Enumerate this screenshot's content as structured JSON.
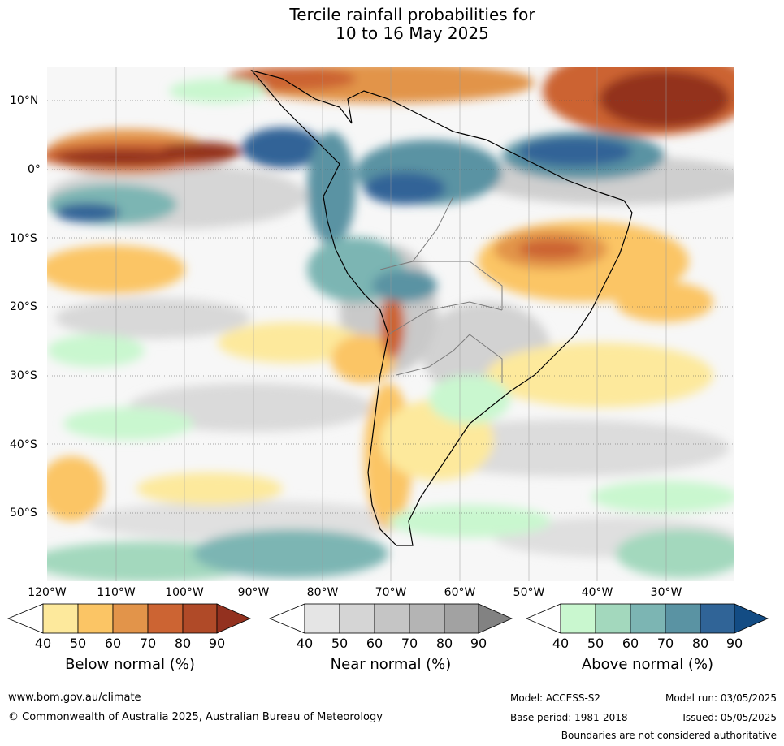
{
  "title": {
    "line1": "Tercile rainfall probabilities for",
    "line2": "10 to 16 May 2025"
  },
  "latitude_labels": [
    "10°N",
    "0°",
    "10°S",
    "20°S",
    "30°S",
    "40°S",
    "50°S"
  ],
  "longitude_labels": [
    "120°W",
    "110°W",
    "100°W",
    "90°W",
    "80°W",
    "70°W",
    "60°W",
    "50°W",
    "40°W",
    "30°W"
  ],
  "colorbars": {
    "below": {
      "title": "Below normal (%)",
      "ticks": [
        "40",
        "50",
        "60",
        "70",
        "80",
        "90"
      ],
      "colors": [
        "#ffffff",
        "#fde99c",
        "#fbc565",
        "#e2944a",
        "#cc6433",
        "#b04a28",
        "#93311f"
      ]
    },
    "near": {
      "title": "Near normal (%)",
      "ticks": [
        "40",
        "50",
        "60",
        "70",
        "80",
        "90"
      ],
      "colors": [
        "#ffffff",
        "#e5e5e5",
        "#d5d5d5",
        "#c5c5c5",
        "#b4b4b4",
        "#a2a2a2",
        "#828282"
      ]
    },
    "above": {
      "title": "Above normal (%)",
      "ticks": [
        "40",
        "50",
        "60",
        "70",
        "80",
        "90"
      ],
      "colors": [
        "#ffffff",
        "#c9f7cf",
        "#a3d8bd",
        "#7cb5b3",
        "#5a93a3",
        "#306497",
        "#134c84"
      ]
    }
  },
  "footer": {
    "website": "www.bom.gov.au/climate",
    "copyright": "© Commonwealth of Australia 2025, Australian Bureau of Meteorology",
    "model": "Model: ACCESS-S2",
    "base_period": "Base period: 1981-2018",
    "model_run": "Model run: 03/05/2025",
    "issued": "Issued: 05/05/2025",
    "disclaimer": "Boundaries are not considered authoritative"
  }
}
